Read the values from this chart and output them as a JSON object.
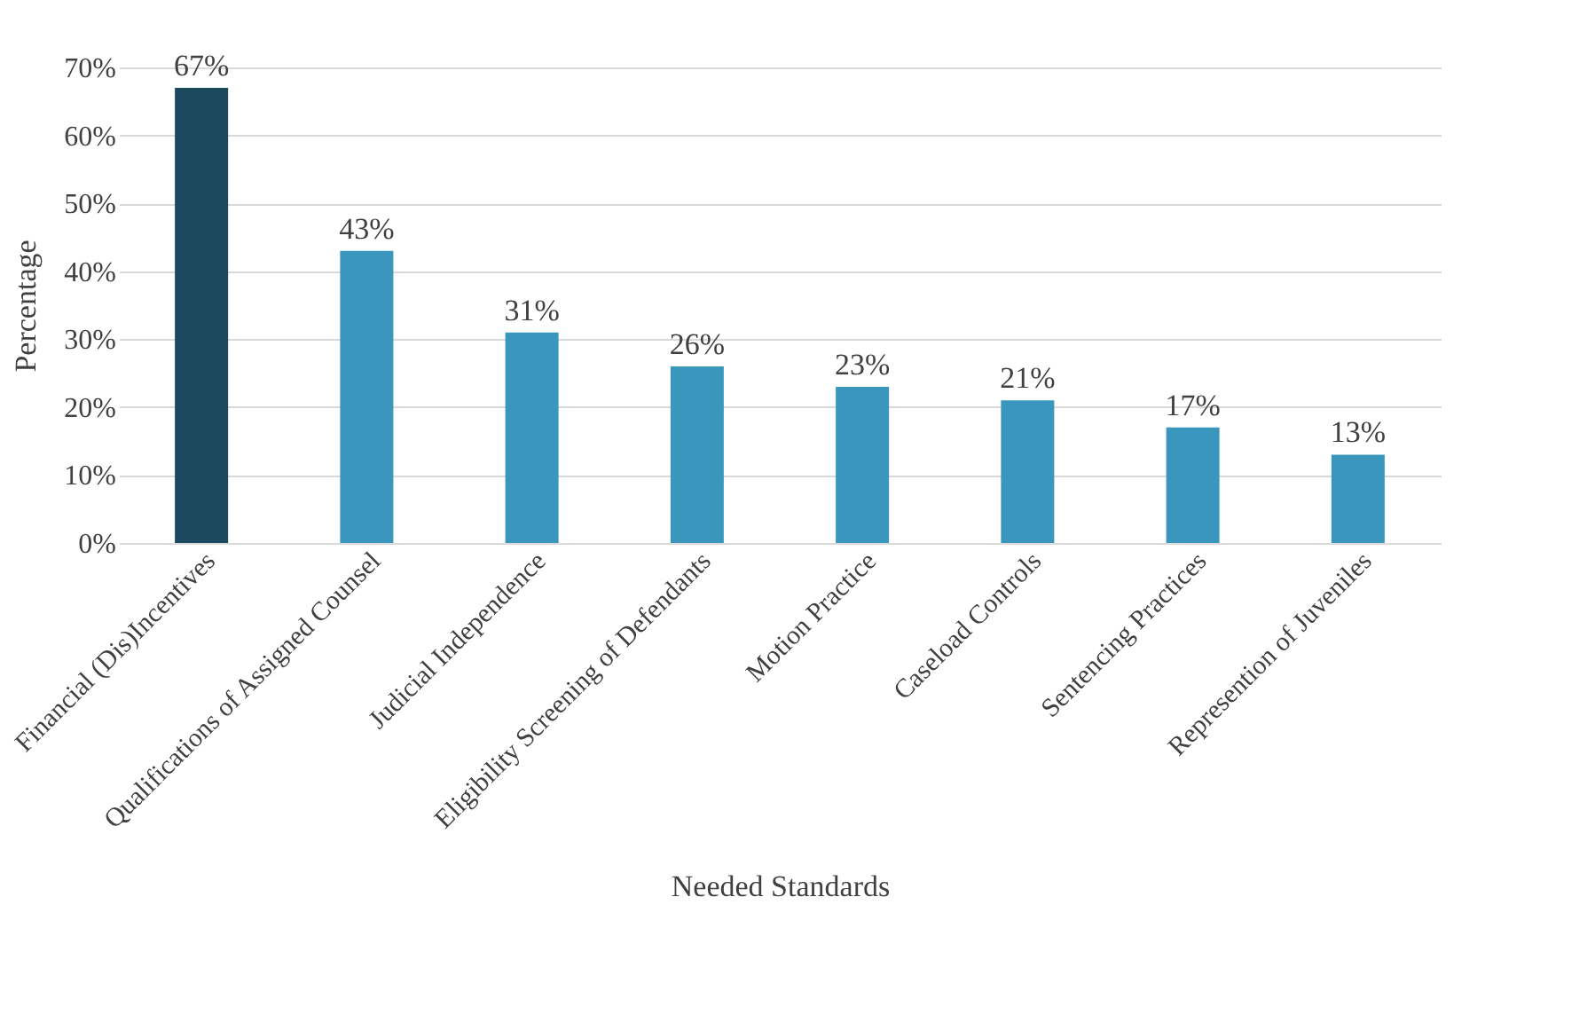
{
  "chart_data": {
    "type": "bar",
    "xlabel": "Needed Standards",
    "ylabel": "Percentage",
    "categories": [
      "Financial (Dis)Incentives",
      "Qualifications of Assigned Counsel",
      "Judicial Independence",
      "Eligibility Screening of Defendants",
      "Motion Practice",
      "Caseload Controls",
      "Sentencing Practices",
      "Represention of Juveniles"
    ],
    "values": [
      67,
      43,
      31,
      26,
      23,
      21,
      17,
      13
    ],
    "colors": [
      "#1b4a5e",
      "#3a96bd",
      "#3a96bd",
      "#3a96bd",
      "#3a96bd",
      "#3a96bd",
      "#3a96bd",
      "#3a96bd"
    ],
    "value_labels": [
      "67%",
      "43%",
      "31%",
      "26%",
      "23%",
      "21%",
      "17%",
      "13%"
    ],
    "ylim": [
      0,
      70
    ],
    "yticks": [
      {
        "value": 0,
        "label": "0%"
      },
      {
        "value": 10,
        "label": "10%"
      },
      {
        "value": 20,
        "label": "20%"
      },
      {
        "value": 30,
        "label": "30%"
      },
      {
        "value": 40,
        "label": "40%"
      },
      {
        "value": 50,
        "label": "50%"
      },
      {
        "value": 60,
        "label": "60%"
      },
      {
        "value": 70,
        "label": "70%"
      }
    ],
    "grid": "y"
  }
}
